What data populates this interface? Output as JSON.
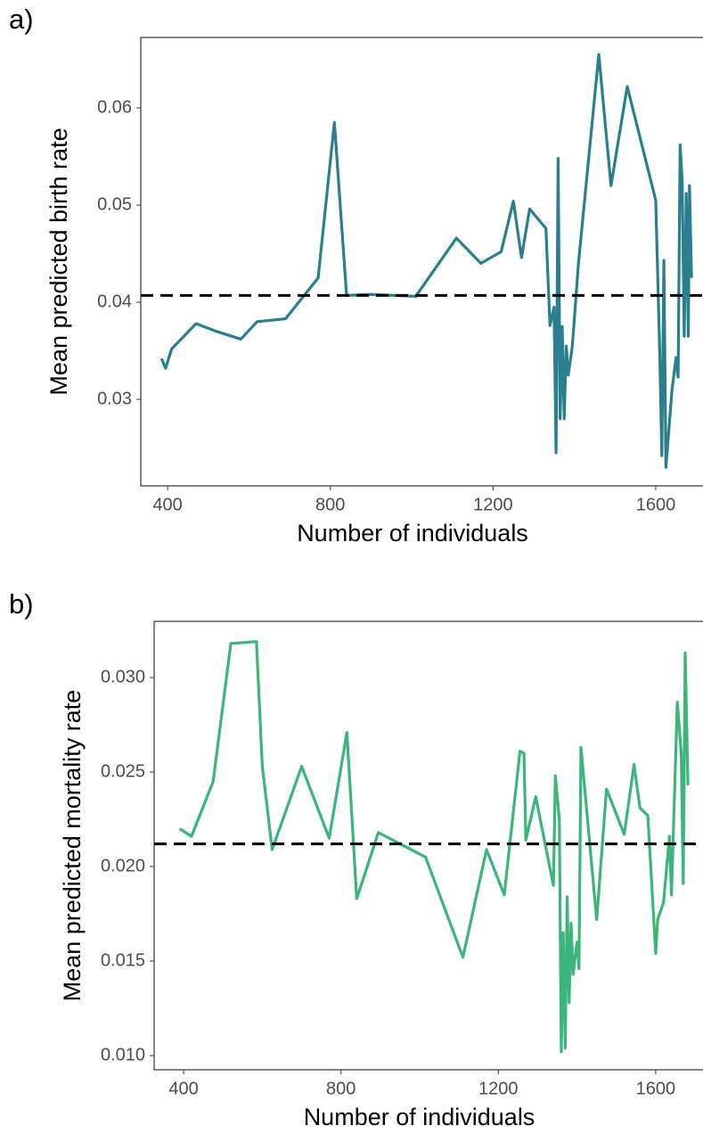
{
  "chart_data": [
    {
      "type": "line",
      "panel": "a)",
      "xlabel": "Number of individuals",
      "ylabel": "Mean predicted birth rate",
      "color": "#2a7f8e",
      "hline": 0.0407,
      "grid": false,
      "xlim": [
        334,
        1714
      ],
      "xticks": [
        400,
        800,
        1200,
        1600
      ],
      "ylim": [
        0.0211,
        0.06725
      ],
      "yticks": [
        0.03,
        0.04,
        0.05,
        0.06
      ],
      "x": [
        385,
        395,
        410,
        470,
        520,
        580,
        620,
        690,
        770,
        810,
        840,
        900,
        1010,
        1110,
        1170,
        1220,
        1250,
        1270,
        1290,
        1330,
        1340,
        1350,
        1355,
        1360,
        1365,
        1370,
        1375,
        1380,
        1385,
        1395,
        1410,
        1460,
        1490,
        1530,
        1570,
        1600,
        1610,
        1615,
        1620,
        1625,
        1640,
        1650,
        1655,
        1660,
        1665,
        1670,
        1675,
        1680,
        1683,
        1688
      ],
      "values": [
        0.0342,
        0.0332,
        0.0352,
        0.0378,
        0.037,
        0.0362,
        0.038,
        0.0383,
        0.0425,
        0.0585,
        0.0407,
        0.0408,
        0.0406,
        0.0466,
        0.044,
        0.0452,
        0.0504,
        0.0446,
        0.0496,
        0.0476,
        0.0376,
        0.0395,
        0.0245,
        0.0548,
        0.028,
        0.0375,
        0.028,
        0.0355,
        0.0325,
        0.0355,
        0.044,
        0.0655,
        0.052,
        0.0622,
        0.0555,
        0.0505,
        0.0345,
        0.0242,
        0.0443,
        0.023,
        0.031,
        0.0343,
        0.0323,
        0.0562,
        0.0525,
        0.0365,
        0.0512,
        0.0365,
        0.052,
        0.0425
      ]
    },
    {
      "type": "line",
      "panel": "b)",
      "xlabel": "Number of individuals",
      "ylabel": "Mean predicted mortality rate",
      "color": "#3bb57a",
      "hline": 0.0212,
      "grid": false,
      "xlim": [
        325,
        1718
      ],
      "xticks": [
        400,
        800,
        1200,
        1600
      ],
      "ylim": [
        0.00925,
        0.03297
      ],
      "yticks": [
        {
          "value": 0.01,
          "label": "0.010"
        },
        0.015,
        {
          "value": 0.02,
          "label": "0.020"
        },
        0.025,
        {
          "value": 0.03,
          "label": "0.030"
        }
      ],
      "x": [
        390,
        420,
        475,
        520,
        585,
        600,
        625,
        700,
        770,
        815,
        840,
        895,
        1015,
        1110,
        1170,
        1215,
        1255,
        1265,
        1270,
        1295,
        1340,
        1345,
        1355,
        1360,
        1365,
        1370,
        1375,
        1380,
        1385,
        1390,
        1400,
        1405,
        1410,
        1450,
        1475,
        1520,
        1545,
        1560,
        1580,
        1600,
        1605,
        1620,
        1635,
        1640,
        1655,
        1665,
        1670,
        1675,
        1682
      ],
      "values": [
        0.022,
        0.0216,
        0.0245,
        0.0318,
        0.0319,
        0.0253,
        0.0209,
        0.0253,
        0.0215,
        0.0271,
        0.0183,
        0.0218,
        0.0205,
        0.0152,
        0.0209,
        0.0185,
        0.0261,
        0.026,
        0.0214,
        0.0237,
        0.019,
        0.0248,
        0.0225,
        0.0102,
        0.0165,
        0.0104,
        0.0184,
        0.0128,
        0.017,
        0.0143,
        0.016,
        0.0146,
        0.0263,
        0.0172,
        0.0241,
        0.0217,
        0.0254,
        0.0231,
        0.0227,
        0.0154,
        0.0172,
        0.0181,
        0.0216,
        0.0185,
        0.0287,
        0.026,
        0.0191,
        0.0313,
        0.0243
      ]
    }
  ]
}
